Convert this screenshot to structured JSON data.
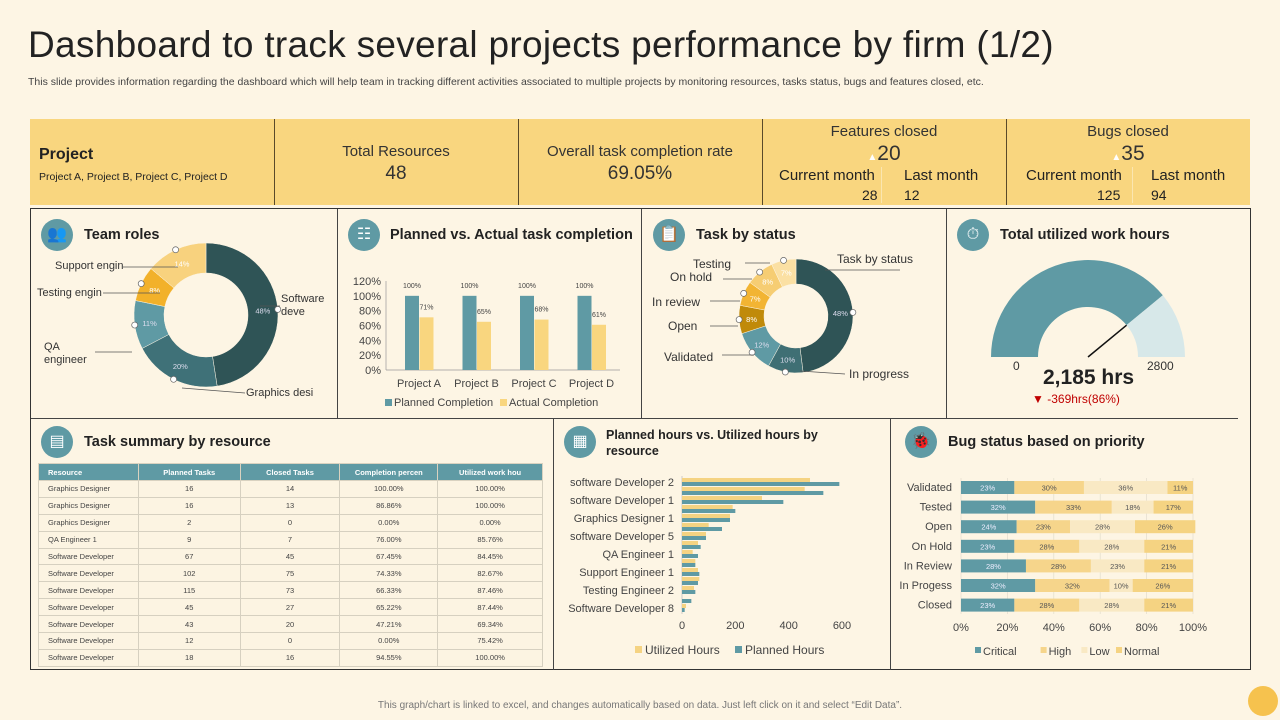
{
  "title": "Dashboard to track several projects performance by firm (1/2)",
  "subtitle": "This slide provides information regarding the dashboard which will help team in tracking  different activities associated to multiple projects by monitoring resources, tasks status, bugs and features closed, etc.",
  "kpi": {
    "project": {
      "label": "Project",
      "value": "Project A, Project B, Project C, Project D"
    },
    "resources": {
      "label": "Total Resources",
      "value": "48"
    },
    "completion": {
      "label": "Overall task completion rate",
      "value": "69.05%"
    },
    "features": {
      "label": "Features closed",
      "value": "20",
      "current_label": "Current month",
      "last_label": "Last month",
      "current": "28",
      "last": "12"
    },
    "bugs": {
      "label": "Bugs closed",
      "value": "35",
      "current_label": "Current month",
      "last_label": "Last month",
      "current": "125",
      "last": "94"
    }
  },
  "panels": {
    "team_roles": "Team roles",
    "planned_actual": "Planned vs. Actual task completion",
    "task_status": "Task by status",
    "work_hours": "Total utilized work hours",
    "task_summary": "Task summary  by resource",
    "planned_hours": "Planned hours vs. Utilized hours by resource",
    "bug_status": "Bug status based on priority"
  },
  "colors": {
    "teal": "#5f9aa4",
    "dark": "#2f5456",
    "yellow": "#f9d67f",
    "red": "#c00000"
  },
  "chart_data": [
    {
      "type": "pie",
      "id": "team_roles",
      "labels": [
        "Software deve",
        "Graphics desi",
        "QA engineer",
        "Testing engin",
        "Support engin"
      ],
      "values": [
        48,
        20,
        11,
        8,
        14
      ],
      "colors": [
        "#2f5456",
        "#3f7178",
        "#5f9aa4",
        "#f2b12a",
        "#f8d27e"
      ]
    },
    {
      "type": "bar",
      "id": "planned_actual",
      "categories": [
        "Project A",
        "Project B",
        "Project C",
        "Project D"
      ],
      "series": [
        {
          "name": "Planned Completion",
          "values": [
            100,
            100,
            100,
            100
          ],
          "color": "#5f9aa4"
        },
        {
          "name": "Actual Completion",
          "values": [
            71,
            65,
            68,
            61
          ],
          "color": "#f9d67f"
        }
      ],
      "yticks": [
        "0%",
        "20%",
        "40%",
        "60%",
        "80%",
        "100%",
        "120%"
      ],
      "ylim": [
        0,
        120
      ]
    },
    {
      "type": "pie",
      "id": "task_status",
      "series_label": "Task by status",
      "labels": [
        "In progress",
        "",
        "Validated",
        "Open",
        "In review",
        "On hold",
        "Testing"
      ],
      "values": [
        48,
        10,
        12,
        8,
        7,
        8,
        7
      ],
      "colors": [
        "#2f5456",
        "#3f6f74",
        "#5f9aa4",
        "#c08a0a",
        "#f2b433",
        "#f6cd73",
        "#fbe0a3"
      ]
    },
    {
      "type": "gauge",
      "id": "work_hours",
      "value": 2185,
      "min": 0,
      "max": 2800,
      "min_label": "0",
      "max_label": "2800",
      "value_label": "2,185 hrs",
      "delta_label": "-369hrs(86%)"
    },
    {
      "type": "bar",
      "id": "planned_hours",
      "orientation": "horizontal",
      "categories": [
        "software Developer 2",
        "",
        "software Developer 1",
        "",
        "Graphics Designer 1",
        "",
        "software Developer 5",
        "",
        "QA  Engineer 1",
        "",
        "Support Engineer 1",
        "",
        "Testing Engineer 2",
        "",
        "Software Developer 8"
      ],
      "series": [
        {
          "name": "Utilized Hours",
          "values": [
            480,
            460,
            300,
            190,
            180,
            100,
            90,
            60,
            40,
            50,
            60,
            65,
            45,
            0,
            15
          ],
          "color": "#f5d382"
        },
        {
          "name": "Planned Hours",
          "values": [
            590,
            530,
            380,
            200,
            180,
            150,
            90,
            70,
            60,
            50,
            65,
            60,
            50,
            35,
            10
          ],
          "color": "#5f9aa4"
        }
      ],
      "xticks": [
        "0",
        "200",
        "400",
        "600"
      ],
      "xlim": [
        0,
        700
      ]
    },
    {
      "type": "bar",
      "id": "bug_status",
      "orientation": "horizontal",
      "stacked": true,
      "categories": [
        "Validated",
        "Tested",
        "Open",
        "On Hold",
        "In Review",
        "In Progess",
        "Closed"
      ],
      "series": [
        {
          "name": "Critical",
          "values": [
            23,
            32,
            24,
            23,
            28,
            32,
            23
          ],
          "color": "#5f9aa4"
        },
        {
          "name": "High",
          "values": [
            30,
            33,
            23,
            28,
            28,
            32,
            28
          ],
          "color": "#f6d58b"
        },
        {
          "name": "Low",
          "values": [
            36,
            18,
            28,
            28,
            23,
            10,
            28
          ],
          "color": "#f9e9c4"
        },
        {
          "name": "Normal",
          "values": [
            11,
            17,
            26,
            21,
            21,
            26,
            21
          ],
          "color": "#f5d382"
        }
      ],
      "xticks": [
        "0%",
        "20%",
        "40%",
        "60%",
        "80%",
        "100%"
      ],
      "xlim": [
        0,
        100
      ]
    }
  ],
  "table": {
    "headers": [
      "Resource",
      "Planned Tasks",
      "Closed Tasks",
      "Completion percen",
      "Utilized work  hou"
    ],
    "rows": [
      [
        "Graphics Designer",
        "16",
        "14",
        "100.00%",
        "100.00%"
      ],
      [
        "Graphics Designer",
        "16",
        "13",
        "86.86%",
        "100.00%"
      ],
      [
        "Graphics Designer",
        "2",
        "0",
        "0.00%",
        "0.00%"
      ],
      [
        "QA Engineer  1",
        "9",
        "7",
        "76.00%",
        "85.76%"
      ],
      [
        "Software  Developer",
        "67",
        "45",
        "67.45%",
        "84.45%"
      ],
      [
        "Software  Developer",
        "102",
        "75",
        "74.33%",
        "82.67%"
      ],
      [
        "Software  Developer",
        "115",
        "73",
        "66.33%",
        "87.46%"
      ],
      [
        "Software  Developer",
        "45",
        "27",
        "65.22%",
        "87.44%"
      ],
      [
        "Software  Developer",
        "43",
        "20",
        "47.21%",
        "69.34%"
      ],
      [
        "Software  Developer",
        "12",
        "0",
        "0.00%",
        "75.42%"
      ],
      [
        "Software  Developer",
        "18",
        "16",
        "94.55%",
        "100.00%"
      ]
    ]
  },
  "footer": "This graph/chart is linked to excel, and changes automatically based on data. Just left click on it and select “Edit Data”."
}
